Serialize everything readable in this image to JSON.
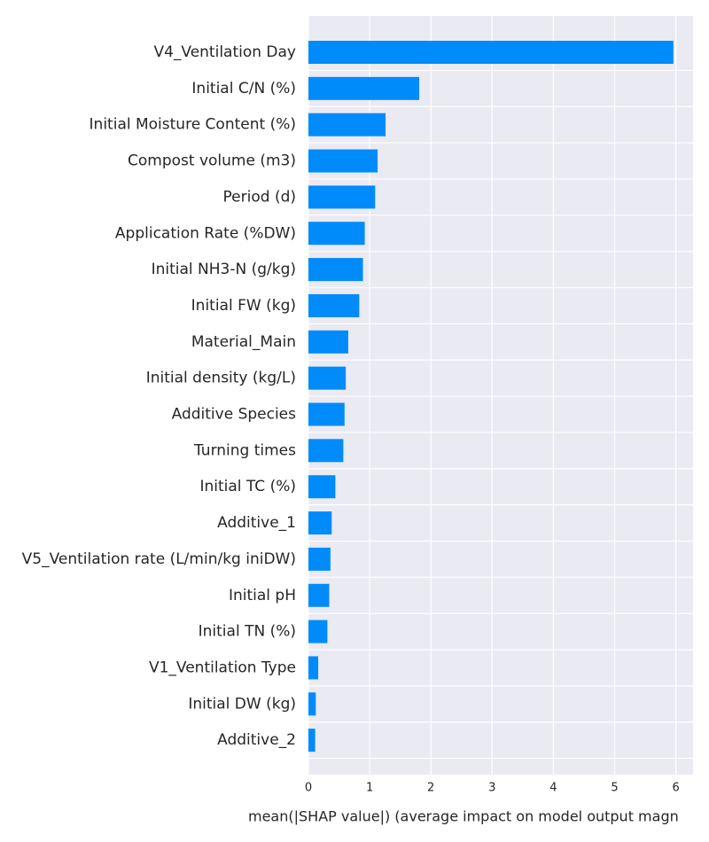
{
  "chart_data": {
    "type": "bar",
    "orientation": "horizontal",
    "categories": [
      "V4_Ventilation Day",
      "Initial C/N (%)",
      "Initial Moisture Content (%)",
      "Compost volume (m3)",
      "Period (d)",
      "Application Rate (%DW)",
      "Initial NH3-N (g/kg)",
      "Initial FW (kg)",
      "Material_Main",
      "Initial density (kg/L)",
      "Additive Species",
      "Turning times",
      "Initial TC (%)",
      "Additive_1",
      "V5_Ventilation rate (L/min/kg iniDW)",
      "Initial pH",
      "Initial TN (%)",
      "V1_Ventilation Type",
      "Initial DW (kg)",
      "Additive_2"
    ],
    "values": [
      5.96,
      1.81,
      1.26,
      1.13,
      1.09,
      0.92,
      0.89,
      0.83,
      0.65,
      0.61,
      0.59,
      0.57,
      0.44,
      0.38,
      0.36,
      0.34,
      0.31,
      0.16,
      0.12,
      0.11
    ],
    "xlabel": "mean(|SHAP value|) (average impact on model output magn",
    "ylabel": "",
    "title": "",
    "xlim": [
      0,
      6.25
    ],
    "xticks": [
      "0",
      "1",
      "2",
      "3",
      "4",
      "5",
      "6"
    ],
    "grid": true,
    "bar_color": "#008bfb",
    "plot_background": "#eaeaf2",
    "grid_color": "#ffffff"
  }
}
